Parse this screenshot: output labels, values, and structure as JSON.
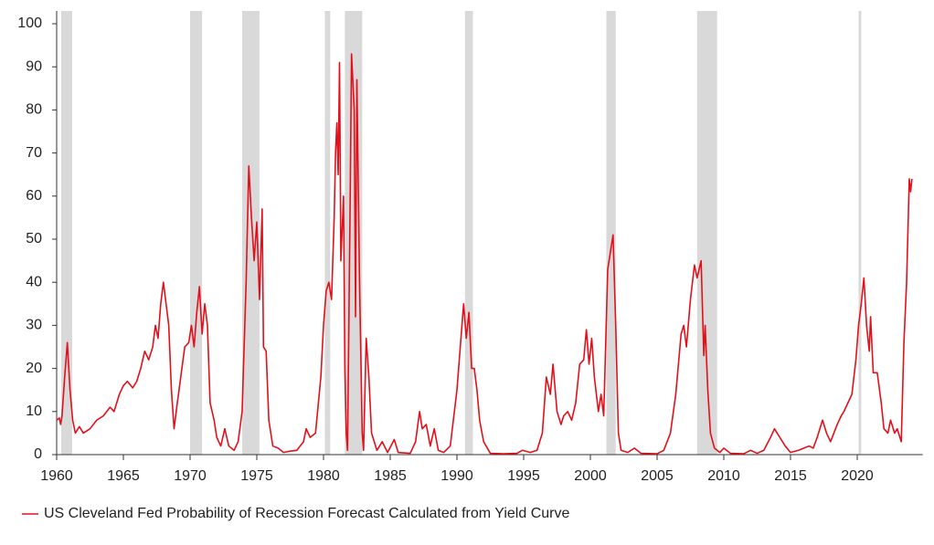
{
  "chart_data": {
    "type": "line",
    "x": [
      1960.0,
      1960.2,
      1960.3,
      1960.4,
      1960.6,
      1960.8,
      1961.0,
      1961.2,
      1961.4,
      1961.7,
      1962.0,
      1962.5,
      1963.0,
      1963.5,
      1964.0,
      1964.3,
      1964.7,
      1965.0,
      1965.3,
      1965.7,
      1966.0,
      1966.3,
      1966.6,
      1966.9,
      1967.2,
      1967.4,
      1967.6,
      1967.8,
      1968.0,
      1968.2,
      1968.4,
      1968.6,
      1968.8,
      1969.0,
      1969.3,
      1969.6,
      1969.9,
      1970.1,
      1970.3,
      1970.5,
      1970.7,
      1970.9,
      1971.1,
      1971.3,
      1971.5,
      1971.8,
      1972.0,
      1972.3,
      1972.6,
      1972.9,
      1973.3,
      1973.6,
      1973.9,
      1974.0,
      1974.2,
      1974.4,
      1974.6,
      1974.8,
      1975.0,
      1975.2,
      1975.4,
      1975.5,
      1975.7,
      1975.9,
      1976.2,
      1976.6,
      1977.0,
      1977.5,
      1978.0,
      1978.5,
      1978.7,
      1979.0,
      1979.4,
      1979.8,
      1980.0,
      1980.2,
      1980.4,
      1980.6,
      1980.8,
      1980.9,
      1981.0,
      1981.1,
      1981.2,
      1981.3,
      1981.5,
      1981.6,
      1981.7,
      1981.8,
      1982.0,
      1982.1,
      1982.3,
      1982.4,
      1982.5,
      1982.7,
      1982.9,
      1983.0,
      1983.2,
      1983.4,
      1983.6,
      1984.0,
      1984.4,
      1984.8,
      1985.3,
      1985.6,
      1986.5,
      1986.9,
      1987.2,
      1987.4,
      1987.7,
      1988.0,
      1988.3,
      1988.6,
      1989.0,
      1989.5,
      1990.0,
      1990.3,
      1990.5,
      1990.7,
      1990.9,
      1991.1,
      1991.3,
      1991.5,
      1991.7,
      1992.0,
      1992.5,
      1993.5,
      1994.5,
      1994.9,
      1995.5,
      1996.0,
      1996.4,
      1996.7,
      1997.0,
      1997.2,
      1997.5,
      1997.8,
      1998.0,
      1998.3,
      1998.6,
      1998.9,
      1999.2,
      1999.5,
      1999.7,
      1999.9,
      2000.1,
      2000.3,
      2000.6,
      2000.8,
      2001.0,
      2001.3,
      2001.5,
      2001.7,
      2001.9,
      2002.1,
      2002.3,
      2002.8,
      2003.3,
      2003.8,
      2005.0,
      2005.5,
      2006.0,
      2006.4,
      2006.8,
      2007.0,
      2007.2,
      2007.5,
      2007.8,
      2008.0,
      2008.3,
      2008.5,
      2008.6,
      2008.8,
      2009.0,
      2009.3,
      2009.7,
      2010.0,
      2010.5,
      2011.5,
      2012.0,
      2012.5,
      2013.0,
      2013.5,
      2013.8,
      2014.2,
      2014.6,
      2015.0,
      2015.6,
      2016.0,
      2016.4,
      2016.7,
      2017.0,
      2017.4,
      2017.7,
      2018.0,
      2018.5,
      2018.8,
      2019.0,
      2019.3,
      2019.6,
      2019.9,
      2020.1,
      2020.3,
      2020.5,
      2020.7,
      2020.9,
      2021.0,
      2021.2,
      2021.5,
      2021.8,
      2022.0,
      2022.3,
      2022.5,
      2022.8,
      2023.0,
      2023.3,
      2023.5,
      2023.7,
      2023.9,
      2024.0,
      2024.1
    ],
    "series": [
      {
        "name": "US Cleveland Fed Probability of Recession Forecast Calculated from Yield Curve",
        "color": "#e3101b",
        "values": [
          8,
          8.5,
          7,
          9,
          18,
          26,
          15,
          8,
          5,
          6.5,
          5,
          6,
          8,
          9,
          11,
          10,
          14,
          16,
          17,
          15.5,
          17,
          20,
          24,
          22,
          25,
          30,
          27,
          35,
          40,
          35,
          30,
          15,
          6,
          11,
          18,
          25,
          26,
          30,
          25,
          33,
          39,
          28,
          35,
          30,
          12,
          8,
          4,
          2,
          6,
          2,
          1,
          3,
          10,
          20,
          40,
          67,
          55,
          45,
          54,
          36,
          57,
          25,
          24,
          8,
          2,
          1.5,
          0.5,
          0.8,
          1,
          3,
          6,
          4,
          5,
          18,
          30,
          38,
          40,
          36,
          55,
          70,
          77,
          65,
          91,
          45,
          60,
          20,
          5,
          1,
          60,
          93,
          80,
          32,
          87,
          40,
          5,
          1,
          27,
          18,
          5,
          1,
          3,
          0.5,
          3.5,
          0.5,
          0.3,
          3,
          10,
          6,
          7,
          2,
          6,
          1,
          0.5,
          2,
          15,
          27,
          35,
          27,
          33,
          20,
          20,
          15,
          8,
          3,
          0.3,
          0.2,
          0.3,
          1,
          0.5,
          1,
          5,
          18,
          14,
          21,
          10,
          7,
          9,
          10,
          8,
          12,
          21,
          22,
          29,
          21,
          27,
          18,
          10,
          14,
          9,
          43,
          47,
          51,
          30,
          5,
          1,
          0.5,
          1.5,
          0.3,
          0.2,
          1,
          5,
          14,
          28,
          30,
          25,
          36,
          44,
          41,
          45,
          23,
          30,
          15,
          5,
          1.5,
          0.5,
          1.5,
          0.3,
          0.2,
          1,
          0.3,
          1,
          4,
          6,
          4,
          2,
          0.5,
          1,
          1.5,
          2,
          1.5,
          4,
          8,
          5,
          3,
          7,
          9,
          10,
          12,
          14,
          22,
          30,
          35,
          41,
          30,
          24,
          32,
          19,
          19,
          12,
          6,
          5,
          8,
          5,
          6,
          3,
          26,
          40,
          64,
          61,
          64
        ]
      }
    ],
    "recessions": [
      [
        1960.34,
        1961.16
      ],
      [
        1970.0,
        1970.9
      ],
      [
        1973.9,
        1975.2
      ],
      [
        1980.1,
        1980.5
      ],
      [
        1981.6,
        1982.9
      ],
      [
        1990.6,
        1991.2
      ],
      [
        2001.2,
        2001.9
      ],
      [
        2008.0,
        2009.5
      ],
      [
        2020.1,
        2020.3
      ]
    ],
    "recession_color": "#d9d9d9",
    "xlim": [
      1960,
      2024.5
    ],
    "xticks": [
      1960,
      1965,
      1970,
      1975,
      1980,
      1985,
      1990,
      1995,
      2000,
      2005,
      2010,
      2015,
      2020
    ],
    "ylim": [
      0,
      100
    ],
    "yticks": [
      0,
      10,
      20,
      30,
      40,
      50,
      60,
      70,
      80,
      90,
      100
    ],
    "grid": false,
    "legend": "bottom-left"
  }
}
